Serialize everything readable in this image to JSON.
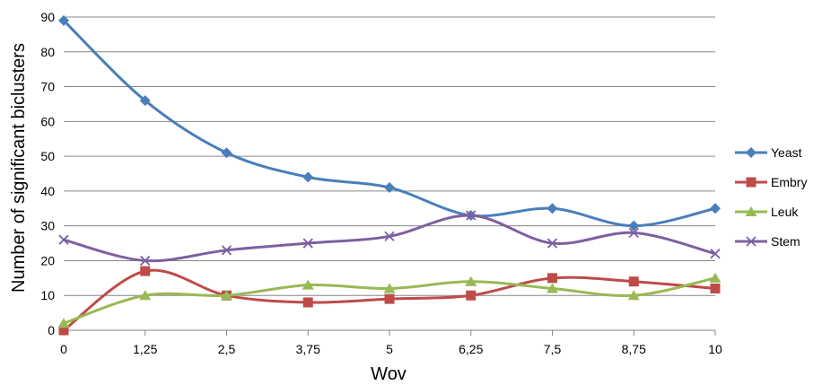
{
  "chart_data": {
    "type": "line",
    "xlabel": "Wov",
    "ylabel": "Number of significant biclusters",
    "categories": [
      "0",
      "1,25",
      "2,5",
      "3,75",
      "5",
      "6,25",
      "7,5",
      "8,75",
      "10"
    ],
    "ylim": [
      0,
      90
    ],
    "yticks": [
      "0",
      "10",
      "20",
      "30",
      "40",
      "50",
      "60",
      "70",
      "80",
      "90"
    ],
    "grid": true,
    "legend_position": "right",
    "smoothed": true,
    "series": [
      {
        "name": "Yeast",
        "values": [
          89,
          66,
          51,
          44,
          41,
          33,
          35,
          30,
          35
        ],
        "color": "#4A7EBB",
        "marker": "diamond"
      },
      {
        "name": "Embry",
        "values": [
          0,
          17,
          10,
          8,
          9,
          10,
          15,
          14,
          12
        ],
        "color": "#BE4B48",
        "marker": "square"
      },
      {
        "name": "Leuk",
        "values": [
          2,
          10,
          10,
          13,
          12,
          14,
          12,
          10,
          15
        ],
        "color": "#98B954",
        "marker": "triangle"
      },
      {
        "name": "Stem",
        "values": [
          26,
          20,
          23,
          25,
          27,
          33,
          25,
          28,
          22
        ],
        "color": "#7D60A0",
        "marker": "x"
      }
    ]
  }
}
